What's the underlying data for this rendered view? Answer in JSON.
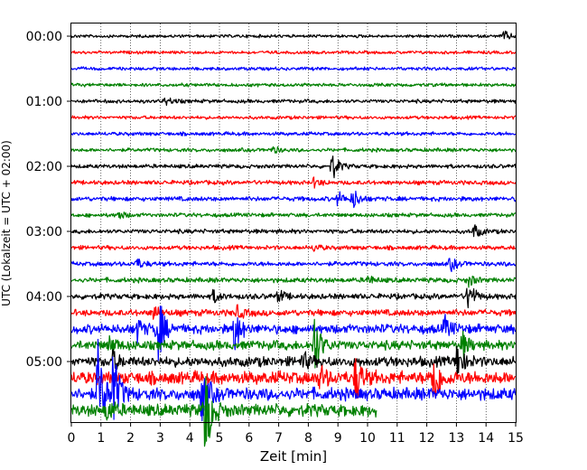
{
  "chart_data": {
    "type": "line",
    "title": "",
    "xlabel": "Zeit  [min]",
    "ylabel": "UTC (Lokalzeit = UTC + 02:00)",
    "xlim": [
      0,
      15
    ],
    "x_ticks": [
      "0",
      "1",
      "2",
      "3",
      "4",
      "5",
      "6",
      "7",
      "8",
      "9",
      "10",
      "11",
      "12",
      "13",
      "14",
      "15"
    ],
    "y_ticks": [
      {
        "label": "00:00",
        "row": 0
      },
      {
        "label": "01:00",
        "row": 4
      },
      {
        "label": "02:00",
        "row": 8
      },
      {
        "label": "03:00",
        "row": 12
      },
      {
        "label": "04:00",
        "row": 16
      },
      {
        "label": "05:00",
        "row": 20
      }
    ],
    "grid": "vertical dotted at each minute",
    "row_minutes": 15,
    "colors": [
      "#000000",
      "#ff0000",
      "#0000ff",
      "#008000"
    ],
    "traces": [
      {
        "start": "00:00",
        "color": "#000000",
        "noise": 2.0,
        "events": [
          {
            "t": 14.6,
            "amp": 6
          }
        ]
      },
      {
        "start": "00:15",
        "color": "#ff0000",
        "noise": 2.0,
        "events": []
      },
      {
        "start": "00:30",
        "color": "#0000ff",
        "noise": 2.2,
        "events": []
      },
      {
        "start": "00:45",
        "color": "#008000",
        "noise": 2.2,
        "events": []
      },
      {
        "start": "01:00",
        "color": "#000000",
        "noise": 2.4,
        "events": [
          {
            "t": 3.2,
            "amp": 5
          }
        ]
      },
      {
        "start": "01:15",
        "color": "#ff0000",
        "noise": 2.2,
        "events": []
      },
      {
        "start": "01:30",
        "color": "#0000ff",
        "noise": 2.4,
        "events": []
      },
      {
        "start": "01:45",
        "color": "#008000",
        "noise": 2.4,
        "events": [
          {
            "t": 6.8,
            "amp": 4
          }
        ]
      },
      {
        "start": "02:00",
        "color": "#000000",
        "noise": 2.6,
        "events": [
          {
            "t": 8.8,
            "amp": 16
          }
        ]
      },
      {
        "start": "02:15",
        "color": "#ff0000",
        "noise": 2.8,
        "events": [
          {
            "t": 8.2,
            "amp": 5
          }
        ]
      },
      {
        "start": "02:30",
        "color": "#0000ff",
        "noise": 3.0,
        "events": [
          {
            "t": 9.5,
            "amp": 12
          },
          {
            "t": 9.0,
            "amp": 8
          }
        ]
      },
      {
        "start": "02:45",
        "color": "#008000",
        "noise": 2.6,
        "events": [
          {
            "t": 1.6,
            "amp": 5
          }
        ]
      },
      {
        "start": "03:00",
        "color": "#000000",
        "noise": 2.8,
        "events": [
          {
            "t": 13.6,
            "amp": 8
          }
        ]
      },
      {
        "start": "03:15",
        "color": "#ff0000",
        "noise": 2.8,
        "events": [
          {
            "t": 8.2,
            "amp": 4
          }
        ]
      },
      {
        "start": "03:30",
        "color": "#0000ff",
        "noise": 3.0,
        "events": [
          {
            "t": 2.2,
            "amp": 6
          },
          {
            "t": 12.8,
            "amp": 8
          }
        ]
      },
      {
        "start": "03:45",
        "color": "#008000",
        "noise": 3.2,
        "events": [
          {
            "t": 10.0,
            "amp": 5
          },
          {
            "t": 13.4,
            "amp": 7
          }
        ]
      },
      {
        "start": "04:00",
        "color": "#000000",
        "noise": 3.6,
        "events": [
          {
            "t": 4.8,
            "amp": 7
          },
          {
            "t": 7.0,
            "amp": 7
          },
          {
            "t": 13.4,
            "amp": 18
          }
        ]
      },
      {
        "start": "04:15",
        "color": "#ff0000",
        "noise": 4.2,
        "events": [
          {
            "t": 2.8,
            "amp": 9
          },
          {
            "t": 5.6,
            "amp": 7
          }
        ]
      },
      {
        "start": "04:30",
        "color": "#0000ff",
        "noise": 6.0,
        "events": [
          {
            "t": 2.9,
            "amp": 44
          },
          {
            "t": 5.5,
            "amp": 26
          },
          {
            "t": 2.2,
            "amp": 14
          },
          {
            "t": 12.6,
            "amp": 12
          }
        ]
      },
      {
        "start": "04:45",
        "color": "#008000",
        "noise": 6.0,
        "events": [
          {
            "t": 8.2,
            "amp": 36
          },
          {
            "t": 1.3,
            "amp": 10
          },
          {
            "t": 13.2,
            "amp": 14
          }
        ]
      },
      {
        "start": "05:00",
        "color": "#000000",
        "noise": 6.5,
        "events": [
          {
            "t": 13.0,
            "amp": 22
          },
          {
            "t": 1.4,
            "amp": 10
          },
          {
            "t": 7.8,
            "amp": 10
          }
        ]
      },
      {
        "start": "05:15",
        "color": "#ff0000",
        "noise": 8.5,
        "events": [
          {
            "t": 9.6,
            "amp": 26
          },
          {
            "t": 12.2,
            "amp": 40
          },
          {
            "t": 8.4,
            "amp": 12
          }
        ]
      },
      {
        "start": "05:30",
        "color": "#0000ff",
        "noise": 8.0,
        "events": [
          {
            "t": 0.9,
            "amp": 54
          },
          {
            "t": 1.4,
            "amp": 46
          },
          {
            "t": 4.4,
            "amp": 34
          }
        ]
      },
      {
        "start": "05:45",
        "color": "#008000",
        "noise": 8.0,
        "end": 10.3,
        "events": [
          {
            "t": 4.5,
            "amp": 60
          },
          {
            "t": 1.2,
            "amp": 12
          }
        ]
      }
    ]
  }
}
